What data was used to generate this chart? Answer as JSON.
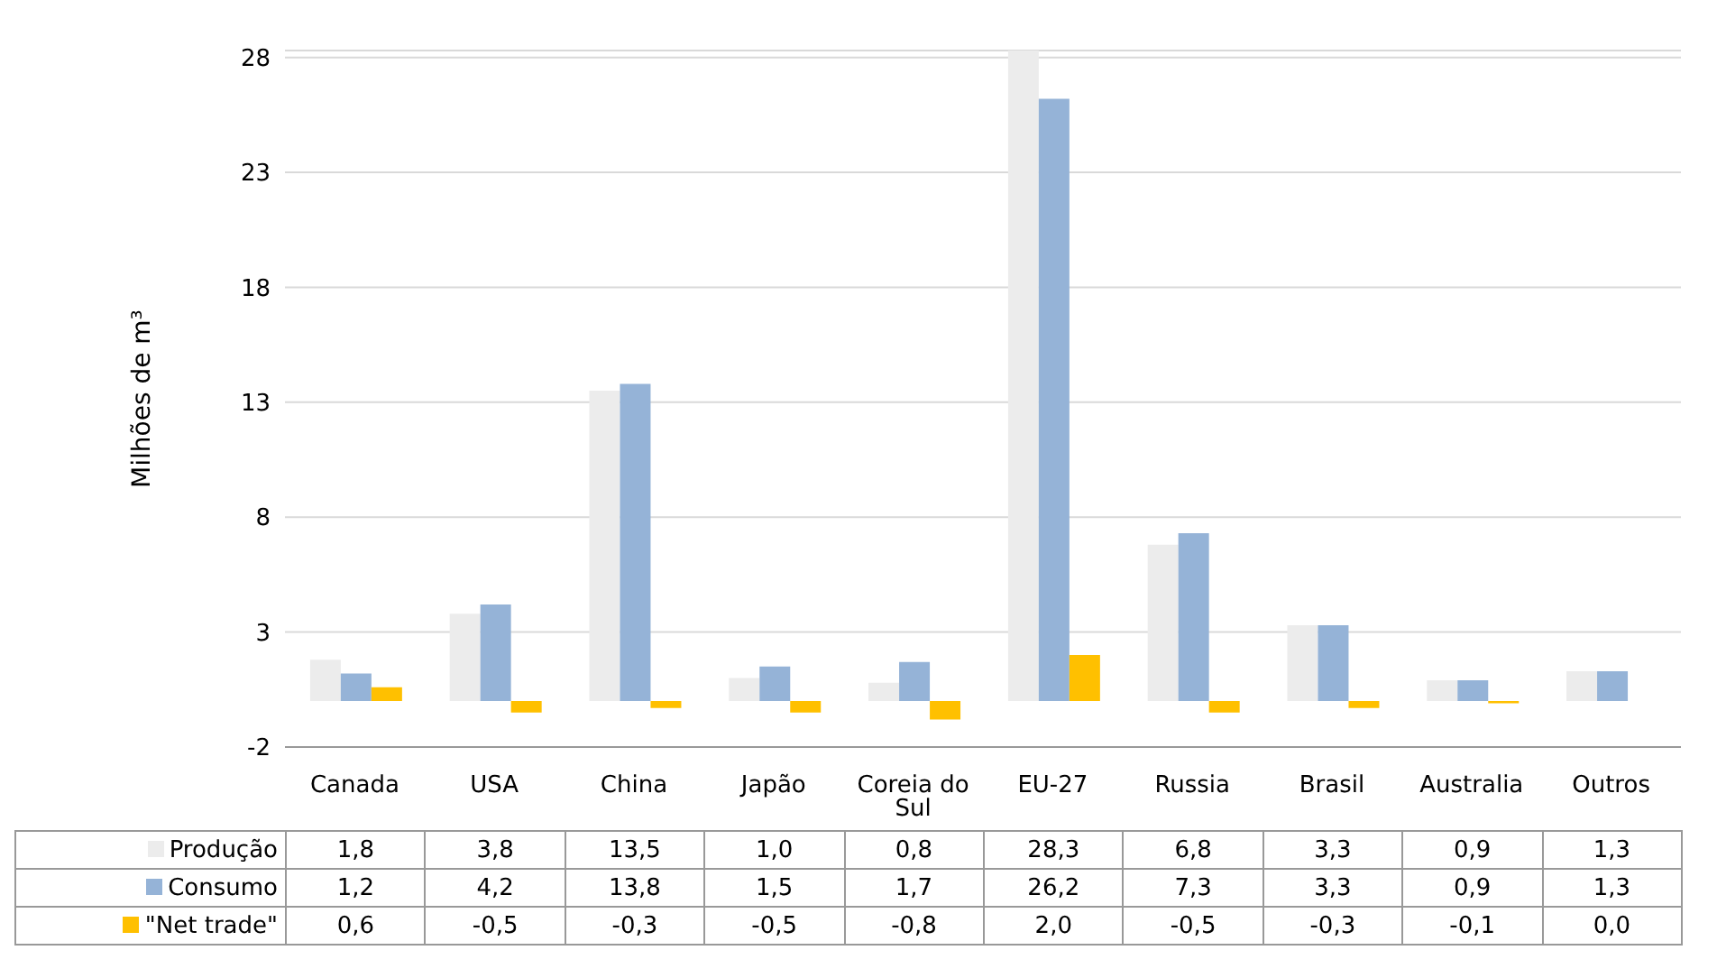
{
  "chart_data": {
    "type": "bar",
    "ylabel": "Milhões de m³",
    "categories": [
      "Canada",
      "USA",
      "China",
      "Japão",
      "Coreia do Sul",
      "EU-27",
      "Russia",
      "Brasil",
      "Australia",
      "Outros"
    ],
    "series": [
      {
        "name": "Produção",
        "color": "#ececec",
        "values": [
          1.8,
          3.8,
          13.5,
          1.0,
          0.8,
          28.3,
          6.8,
          3.3,
          0.9,
          1.3
        ],
        "value_labels": [
          "1,8",
          "3,8",
          "13,5",
          "1,0",
          "0,8",
          "28,3",
          "6,8",
          "3,3",
          "0,9",
          "1,3"
        ]
      },
      {
        "name": "Consumo",
        "color": "#95b3d7",
        "values": [
          1.2,
          4.2,
          13.8,
          1.5,
          1.7,
          26.2,
          7.3,
          3.3,
          0.9,
          1.3
        ],
        "value_labels": [
          "1,2",
          "4,2",
          "13,8",
          "1,5",
          "1,7",
          "26,2",
          "7,3",
          "3,3",
          "0,9",
          "1,3"
        ]
      },
      {
        "name": "\"Net trade\"",
        "color": "#ffc000",
        "values": [
          0.6,
          -0.5,
          -0.3,
          -0.5,
          -0.8,
          2.0,
          -0.5,
          -0.3,
          -0.1,
          0.0
        ],
        "value_labels": [
          "0,6",
          "-0,5",
          "-0,3",
          "-0,5",
          "-0,8",
          "2,0",
          "-0,5",
          "-0,3",
          "-0,1",
          "0,0"
        ]
      }
    ],
    "ylim": [
      -2,
      28.3
    ],
    "yticks": [
      -2,
      3,
      8,
      13,
      18,
      23,
      28
    ],
    "grid": "y",
    "legend": "bottom"
  }
}
